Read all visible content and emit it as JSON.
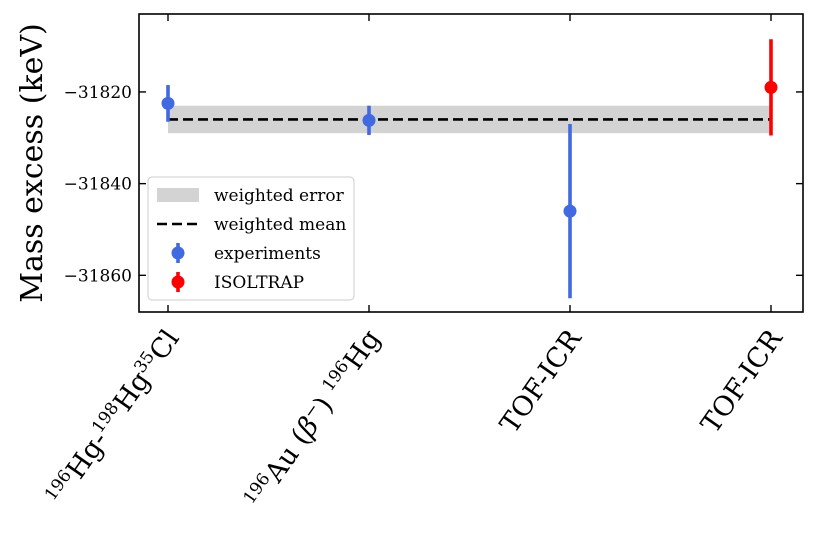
{
  "chart_data": {
    "type": "scatter",
    "title": "",
    "ylabel": "Mass excess (keV)",
    "xlabel": "",
    "ylim": [
      -31868,
      -31803
    ],
    "yticks": [
      -31820,
      -31840,
      -31860
    ],
    "ytick_labels": [
      "−31820",
      "−31840",
      "−31860"
    ],
    "grid": false,
    "legend_position": "lower-left",
    "categories": [
      {
        "parts": [
          [
            "196",
            "sup"
          ],
          [
            "Hg-",
            "n"
          ],
          [
            "198",
            "sup"
          ],
          [
            "Hg",
            "n"
          ],
          [
            "35",
            "sup"
          ],
          [
            "Cl",
            "n"
          ]
        ]
      },
      {
        "parts": [
          [
            "196",
            "sup"
          ],
          [
            "Au (",
            "n"
          ],
          [
            "β",
            "i"
          ],
          [
            "−",
            "sup"
          ],
          [
            ") ",
            "n"
          ],
          [
            "196",
            "sup"
          ],
          [
            "Hg",
            "n"
          ]
        ]
      },
      {
        "parts": [
          [
            "TOF-ICR",
            "n"
          ]
        ]
      },
      {
        "parts": [
          [
            "TOF-ICR",
            "n"
          ]
        ]
      }
    ],
    "weighted_mean": -31826,
    "weighted_error_band": [
      -31829,
      -31823
    ],
    "series": [
      {
        "name": "experiments",
        "color": "#4169e1",
        "points": [
          {
            "x": 0,
            "y": -31822.5,
            "err_low": 4,
            "err_high": 4
          },
          {
            "x": 1,
            "y": -31826.2,
            "err_low": 3.2,
            "err_high": 3.2
          },
          {
            "x": 2,
            "y": -31846,
            "err_low": 19,
            "err_high": 19
          }
        ]
      },
      {
        "name": "ISOLTRAP",
        "color": "#ff0000",
        "points": [
          {
            "x": 3,
            "y": -31819,
            "err_low": 10.5,
            "err_high": 10.5
          }
        ]
      }
    ],
    "legend": [
      {
        "label": "weighted error",
        "kind": "band",
        "color": "#d3d3d3"
      },
      {
        "label": "weighted mean",
        "kind": "dashed",
        "color": "#000000"
      },
      {
        "label": "experiments",
        "kind": "errorbar",
        "color": "#4169e1"
      },
      {
        "label": "ISOLTRAP",
        "kind": "errorbar",
        "color": "#ff0000"
      }
    ]
  }
}
